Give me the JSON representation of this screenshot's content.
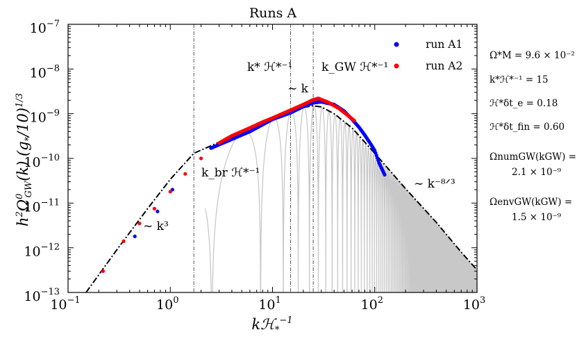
{
  "chart_data": {
    "type": "line",
    "title": "Runs A",
    "xlabel": "kℋ*⁻¹",
    "ylabel": "h²Ω⁰GW(k) (g*/10)^1/3",
    "xscale": "log",
    "yscale": "log",
    "xlim": [
      0.1,
      1000
    ],
    "ylim": [
      1e-13,
      1e-07
    ],
    "grid": false,
    "legend_position": "top-right",
    "x_ticks": [
      {
        "base": "10",
        "exp": "−1"
      },
      {
        "base": "10",
        "exp": "0"
      },
      {
        "base": "10",
        "exp": "1"
      },
      {
        "base": "10",
        "exp": "2"
      },
      {
        "base": "10",
        "exp": "3"
      }
    ],
    "y_ticks": [
      {
        "base": "10",
        "exp": "−13"
      },
      {
        "base": "10",
        "exp": "−12"
      },
      {
        "base": "10",
        "exp": "−11"
      },
      {
        "base": "10",
        "exp": "−10"
      },
      {
        "base": "10",
        "exp": "−9"
      },
      {
        "base": "10",
        "exp": "−8"
      },
      {
        "base": "10",
        "exp": "−7"
      }
    ],
    "vertical_lines": [
      {
        "x": 1.7,
        "label": "k_br ℋ*⁻¹"
      },
      {
        "x": 15,
        "label": "k* ℋ*⁻¹"
      },
      {
        "x": 25,
        "label": "k_GW ℋ*⁻¹"
      }
    ],
    "annotations": {
      "slope_low": "∼ k³",
      "slope_mid": "∼ k",
      "slope_high": "∼ k⁻⁸ᐟ³",
      "kbr": "k_br ℋ*⁻¹",
      "kstar": "k* ℋ*⁻¹",
      "kgw": "k_GW ℋ*⁻¹"
    },
    "series": [
      {
        "name": "run A1",
        "color": "#0000ff",
        "style": "dots",
        "points": [
          [
            0.45,
            1.8e-12
          ],
          [
            0.75,
            6.5e-12
          ],
          [
            1.05,
            2e-11
          ],
          [
            2.5,
            1.7e-10
          ],
          [
            6,
            4e-10
          ],
          [
            10,
            7.5e-10
          ],
          [
            15,
            1.05e-09
          ],
          [
            20,
            1.45e-09
          ],
          [
            25,
            1.75e-09
          ],
          [
            30,
            1.85e-09
          ],
          [
            40,
            1.6e-09
          ],
          [
            50,
            1.15e-09
          ],
          [
            60,
            7.5e-10
          ],
          [
            70,
            5e-10
          ],
          [
            80,
            3.3e-10
          ],
          [
            90,
            2.2e-10
          ],
          [
            100,
            1.5e-10
          ],
          [
            110,
            8e-11
          ],
          [
            125,
            4.3e-11
          ]
        ]
      },
      {
        "name": "run A2",
        "color": "#ff0000",
        "style": "dots",
        "points": [
          [
            0.22,
            3e-13
          ],
          [
            0.35,
            1.4e-12
          ],
          [
            0.5,
            3.5e-12
          ],
          [
            0.7,
            7.5e-12
          ],
          [
            1.0,
            1.8e-11
          ],
          [
            1.4,
            4.5e-11
          ],
          [
            2.0,
            1e-10
          ],
          [
            3,
            2.2e-10
          ],
          [
            4,
            3.2e-10
          ],
          [
            6,
            4.8e-10
          ],
          [
            8,
            6.5e-10
          ],
          [
            10,
            8e-10
          ],
          [
            15,
            1.2e-09
          ],
          [
            20,
            1.6e-09
          ],
          [
            25,
            2.05e-09
          ],
          [
            28,
            2.2e-09
          ],
          [
            35,
            1.8e-09
          ],
          [
            45,
            1.3e-09
          ],
          [
            55,
            9e-10
          ],
          [
            63,
            7e-10
          ]
        ]
      },
      {
        "name": "envelope",
        "color": "#000000",
        "style": "dashdot",
        "points": [
          [
            0.15,
            1e-13
          ],
          [
            0.3,
            9e-13
          ],
          [
            0.6,
            7.5e-12
          ],
          [
            1.0,
            3.4e-11
          ],
          [
            1.7,
            1.3e-10
          ],
          [
            3,
            2.3e-10
          ],
          [
            5,
            3.9e-10
          ],
          [
            8,
            6.3e-10
          ],
          [
            12,
            9.5e-10
          ],
          [
            15,
            1.15e-09
          ],
          [
            20,
            1.38e-09
          ],
          [
            25,
            1.5e-09
          ],
          [
            30,
            1.42e-09
          ],
          [
            40,
            1e-09
          ],
          [
            60,
            4.8e-10
          ],
          [
            100,
            1.3e-10
          ],
          [
            200,
            2.1e-11
          ],
          [
            400,
            3.7e-12
          ],
          [
            700,
            8e-13
          ],
          [
            1000,
            3.2e-13
          ]
        ]
      },
      {
        "name": "numerical",
        "color": "#c8c8c8",
        "style": "oscillating"
      }
    ]
  },
  "params": [
    {
      "text": "Ω*M = 9.6 × 10⁻²"
    },
    {
      "text": "k*ℋ*⁻¹ = 15"
    },
    {
      "text": "ℋ*δt_e = 0.18"
    },
    {
      "text": "ℋ*δt_fin = 0.60"
    },
    {
      "text": "ΩnumGW(kGW) ="
    },
    {
      "text": "2.1 × 10⁻⁹"
    },
    {
      "text": "ΩenvGW(kGW) ="
    },
    {
      "text": "1.5 × 10⁻⁹"
    }
  ]
}
